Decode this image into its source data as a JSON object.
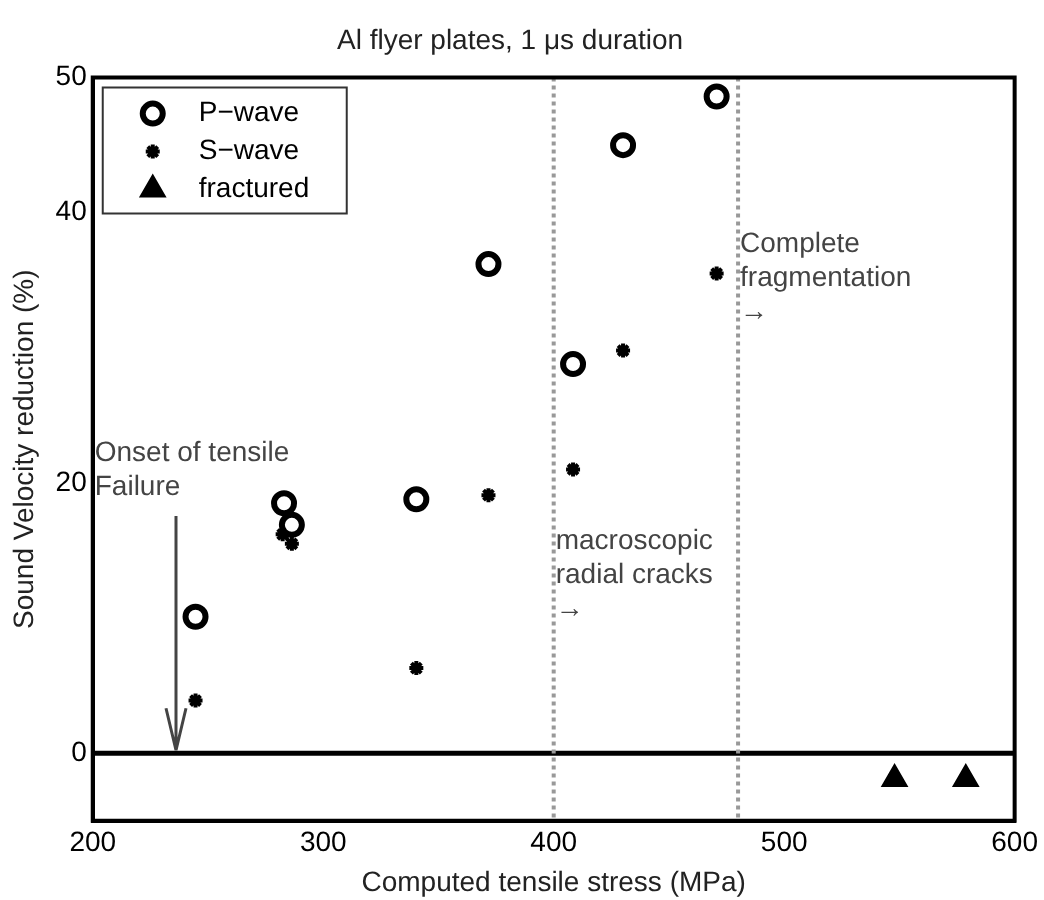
{
  "chart_data": {
    "type": "scatter",
    "title": "Al flyer plates, 1 μs duration",
    "xlabel": "Computed tensile stress (MPa)",
    "ylabel": "Sound Velocity reduction (%)",
    "series": [
      {
        "name": "P−wave",
        "color": "#000000",
        "marker": "circle",
        "x": [
          244.6,
          283,
          286.4,
          340.4,
          371.7,
          408.4,
          430.1,
          470.7
        ],
        "values": [
          10.1,
          18.5,
          16.9,
          18.8,
          36.2,
          28.8,
          45.0,
          48.6
        ]
      },
      {
        "name": "S−wave",
        "color": "#000000",
        "marker": "cross",
        "x": [
          244.6,
          282.4,
          286.4,
          340.4,
          371.7,
          408.4,
          430.1,
          470.7
        ],
        "values": [
          3.9,
          16.2,
          15.5,
          6.3,
          19.1,
          21.0,
          29.8,
          35.5
        ]
      },
      {
        "name": "fractured",
        "color": "#000000",
        "marker": "triangle",
        "x": [
          547.9,
          578.8
        ],
        "values": [
          -1.9,
          -1.9
        ]
      }
    ],
    "xlim": [
      200,
      600
    ],
    "xticks": [
      200,
      300,
      400,
      500,
      600
    ],
    "ylim": [
      -5,
      50
    ],
    "yticks": [
      0,
      20,
      40,
      50
    ],
    "ref_lines": [
      {
        "axis": "y",
        "value": 0,
        "color": "#000000",
        "line_style": "solid"
      },
      {
        "axis": "x",
        "value": 400,
        "color": "#999999",
        "line_style": "dotted"
      },
      {
        "axis": "x",
        "value": 480,
        "color": "#999999",
        "line_style": "dotted"
      }
    ],
    "annotations": [
      {
        "text": "Onset of tensile\nFailure",
        "x": 236,
        "y": 0
      },
      {
        "text": "macroscopic\nradial cracks\n→",
        "x": 400,
        "y": 13
      },
      {
        "text": "Complete\nfragmentation\n→",
        "x": 480,
        "y": 35
      }
    ],
    "legend": "top left",
    "grid": false
  }
}
